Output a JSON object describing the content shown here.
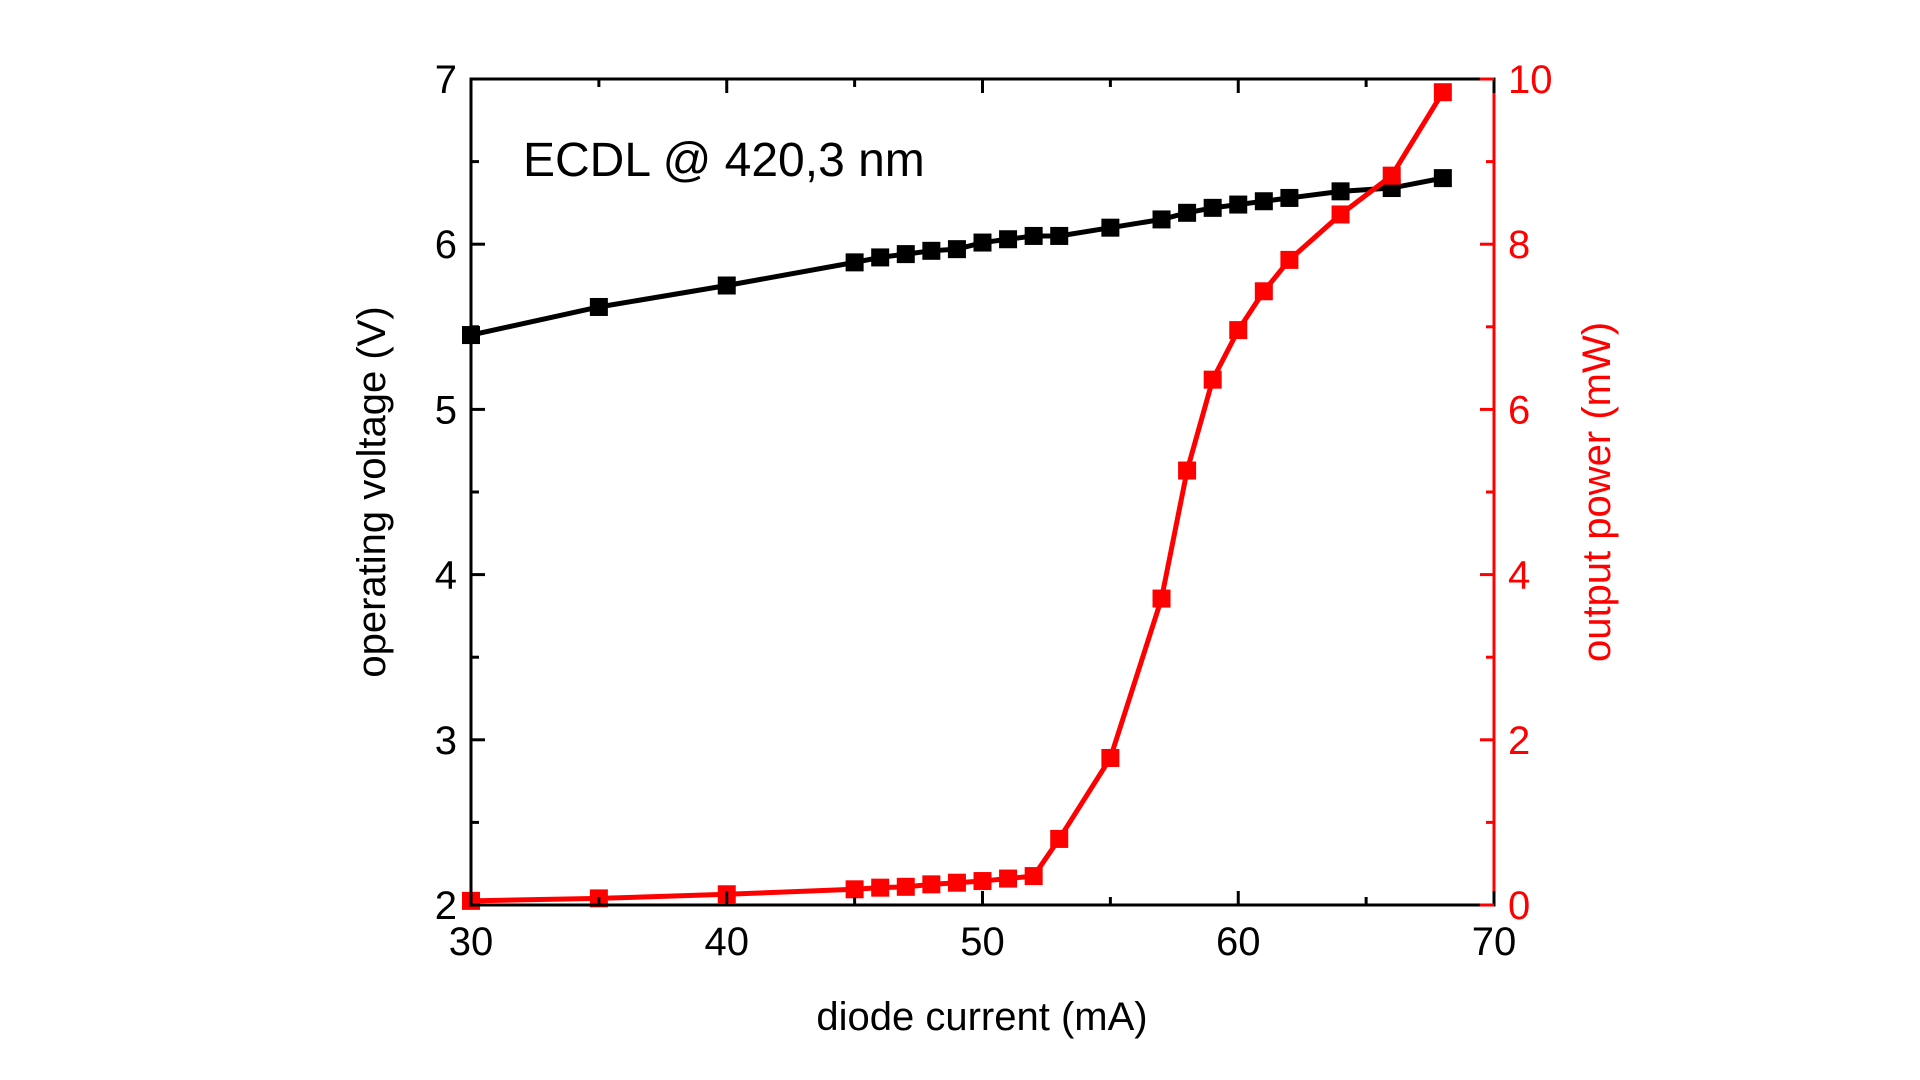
{
  "chart_data": {
    "type": "line",
    "annotation": "ECDL @ 420,3 nm",
    "xlabel": "diode current (mA)",
    "ylabel": "operating voltage (V)",
    "y2label": "output power (mW)",
    "xlim": [
      30,
      70
    ],
    "ylim": [
      2,
      7
    ],
    "y2lim": [
      0,
      10
    ],
    "xticks": [
      "30",
      "40",
      "50",
      "60",
      "70"
    ],
    "yticks": [
      "2",
      "3",
      "4",
      "5",
      "6",
      "7"
    ],
    "y2ticks": [
      "0",
      "2",
      "4",
      "6",
      "8",
      "10"
    ],
    "grid": false,
    "x": [
      30,
      35,
      40,
      45,
      46,
      47,
      48,
      49,
      50,
      51,
      52,
      53,
      55,
      57,
      58,
      59,
      60,
      61,
      62,
      64,
      66,
      68
    ],
    "series": [
      {
        "axis": "left",
        "color": "#000000",
        "marker": "square",
        "values": [
          5.45,
          5.62,
          5.75,
          5.89,
          5.92,
          5.94,
          5.96,
          5.97,
          6.01,
          6.03,
          6.05,
          6.05,
          6.1,
          6.15,
          6.19,
          6.22,
          6.24,
          6.26,
          6.28,
          6.32,
          6.34,
          6.4
        ]
      },
      {
        "axis": "right",
        "color": "#ff0000",
        "marker": "square",
        "values": [
          0.05,
          0.08,
          0.13,
          0.19,
          0.21,
          0.22,
          0.25,
          0.27,
          0.29,
          0.32,
          0.35,
          0.8,
          1.78,
          3.71,
          5.26,
          6.36,
          6.96,
          7.43,
          7.81,
          8.36,
          8.83,
          9.84
        ]
      }
    ]
  }
}
